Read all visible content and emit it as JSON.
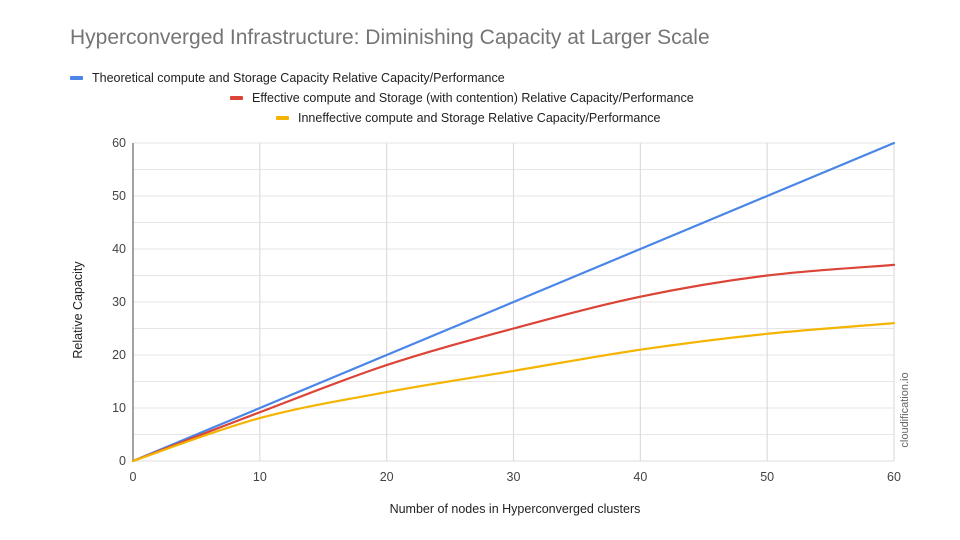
{
  "chart_data": {
    "type": "line",
    "title": "Hyperconverged Infrastructure: Diminishing Capacity at Larger Scale",
    "xlabel": "Number of nodes in Hyperconverged clusters",
    "ylabel": "Relative Capacity",
    "xlim": [
      0,
      60
    ],
    "ylim": [
      0,
      60
    ],
    "x_ticks": [
      0,
      10,
      20,
      30,
      40,
      50,
      60
    ],
    "y_ticks": [
      0,
      10,
      20,
      30,
      40,
      50,
      60
    ],
    "y_minor_gridlines": [
      5,
      15,
      25,
      35,
      45,
      55
    ],
    "grid": true,
    "legend_position": "top",
    "watermark": "cloudification.io",
    "x": [
      0,
      10,
      20,
      30,
      40,
      50,
      60
    ],
    "series": [
      {
        "name": "Theoretical compute and Storage Capacity Relative Capacity/Performance",
        "color": "#4a86e8",
        "values": [
          0,
          10,
          20,
          30,
          40,
          50,
          60
        ]
      },
      {
        "name": "Effective compute and Storage (with contention) Relative Capacity/Performance",
        "color": "#db4437",
        "values": [
          0,
          9.2,
          18.1,
          25,
          31,
          35,
          37
        ]
      },
      {
        "name": "Inneffective compute and Storage Relative Capacity/Performance",
        "color": "#f4b400",
        "values": [
          0,
          8.1,
          13,
          17,
          21,
          24,
          26
        ]
      }
    ]
  }
}
